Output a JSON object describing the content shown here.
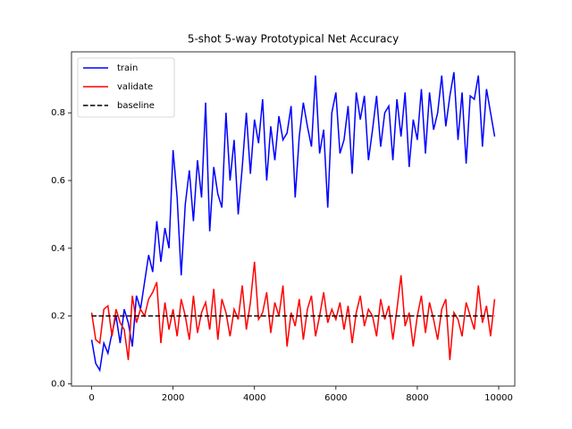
{
  "chart_data": {
    "type": "line",
    "title": "5-shot 5-way Prototypical Net Accuracy",
    "x": [
      0,
      100,
      200,
      300,
      400,
      500,
      600,
      700,
      800,
      900,
      1000,
      1100,
      1200,
      1300,
      1400,
      1500,
      1600,
      1700,
      1800,
      1900,
      2000,
      2100,
      2200,
      2300,
      2400,
      2500,
      2600,
      2700,
      2800,
      2900,
      3000,
      3100,
      3200,
      3300,
      3400,
      3500,
      3600,
      3700,
      3800,
      3900,
      4000,
      4100,
      4200,
      4300,
      4400,
      4500,
      4600,
      4700,
      4800,
      4900,
      5000,
      5100,
      5200,
      5300,
      5400,
      5500,
      5600,
      5700,
      5800,
      5900,
      6000,
      6100,
      6200,
      6300,
      6400,
      6500,
      6600,
      6700,
      6800,
      6900,
      7000,
      7100,
      7200,
      7300,
      7400,
      7500,
      7600,
      7700,
      7800,
      7900,
      8000,
      8100,
      8200,
      8300,
      8400,
      8500,
      8600,
      8700,
      8800,
      8900,
      9000,
      9100,
      9200,
      9300,
      9400,
      9500,
      9600,
      9700,
      9800,
      9900
    ],
    "series": [
      {
        "name": "train",
        "color": "#0000ff",
        "values": [
          0.13,
          0.06,
          0.04,
          0.12,
          0.09,
          0.15,
          0.2,
          0.12,
          0.22,
          0.18,
          0.11,
          0.26,
          0.22,
          0.3,
          0.38,
          0.33,
          0.48,
          0.36,
          0.46,
          0.4,
          0.69,
          0.55,
          0.32,
          0.53,
          0.63,
          0.48,
          0.66,
          0.55,
          0.83,
          0.45,
          0.64,
          0.56,
          0.52,
          0.8,
          0.6,
          0.72,
          0.5,
          0.64,
          0.8,
          0.62,
          0.78,
          0.71,
          0.84,
          0.6,
          0.76,
          0.66,
          0.79,
          0.72,
          0.74,
          0.82,
          0.55,
          0.73,
          0.83,
          0.76,
          0.7,
          0.91,
          0.68,
          0.75,
          0.52,
          0.8,
          0.86,
          0.68,
          0.72,
          0.82,
          0.62,
          0.86,
          0.78,
          0.85,
          0.66,
          0.75,
          0.85,
          0.7,
          0.8,
          0.82,
          0.66,
          0.84,
          0.73,
          0.86,
          0.64,
          0.78,
          0.72,
          0.87,
          0.68,
          0.86,
          0.75,
          0.8,
          0.91,
          0.76,
          0.85,
          0.92,
          0.72,
          0.86,
          0.65,
          0.85,
          0.84,
          0.91,
          0.7,
          0.87,
          0.8,
          0.73
        ]
      },
      {
        "name": "validate",
        "color": "#ff0000",
        "values": [
          0.21,
          0.13,
          0.12,
          0.22,
          0.23,
          0.14,
          0.22,
          0.18,
          0.16,
          0.07,
          0.26,
          0.18,
          0.22,
          0.2,
          0.25,
          0.27,
          0.3,
          0.12,
          0.24,
          0.16,
          0.22,
          0.14,
          0.25,
          0.2,
          0.13,
          0.26,
          0.15,
          0.21,
          0.24,
          0.16,
          0.28,
          0.13,
          0.25,
          0.21,
          0.14,
          0.22,
          0.19,
          0.29,
          0.16,
          0.24,
          0.36,
          0.19,
          0.21,
          0.27,
          0.15,
          0.24,
          0.2,
          0.29,
          0.11,
          0.21,
          0.17,
          0.25,
          0.13,
          0.22,
          0.26,
          0.14,
          0.2,
          0.27,
          0.18,
          0.22,
          0.19,
          0.24,
          0.16,
          0.23,
          0.12,
          0.21,
          0.26,
          0.17,
          0.22,
          0.2,
          0.14,
          0.25,
          0.19,
          0.23,
          0.13,
          0.22,
          0.32,
          0.17,
          0.21,
          0.11,
          0.2,
          0.26,
          0.15,
          0.24,
          0.19,
          0.13,
          0.22,
          0.25,
          0.07,
          0.21,
          0.19,
          0.14,
          0.24,
          0.2,
          0.16,
          0.29,
          0.18,
          0.23,
          0.14,
          0.25
        ]
      },
      {
        "name": "baseline",
        "color": "#000000",
        "dashed": true,
        "x": [
          0,
          9900
        ],
        "values": [
          0.2,
          0.2
        ]
      }
    ],
    "xlim": [
      -495,
      10395
    ],
    "ylim": [
      -0.007,
      0.98
    ],
    "xticks": [
      0,
      2000,
      4000,
      6000,
      8000,
      10000
    ],
    "yticks": [
      {
        "value": 0,
        "label": "0.0"
      },
      0.2,
      0.4,
      0.6,
      0.8
    ],
    "legend": "upper left"
  }
}
